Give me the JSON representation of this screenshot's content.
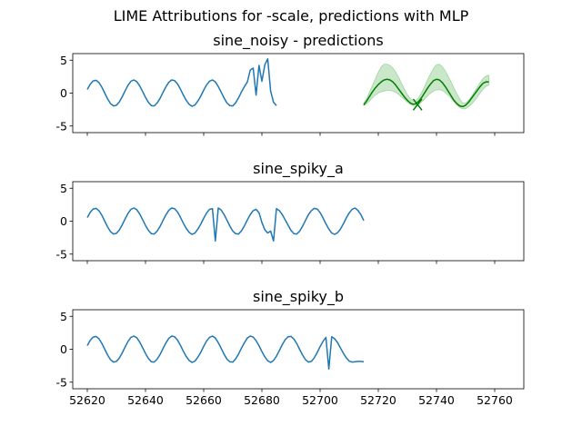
{
  "figure": {
    "suptitle": "LIME Attributions for -scale, predictions with MLP",
    "colors": {
      "series": "#1f77b4",
      "prediction": "#008000",
      "band": "#2ca02c"
    }
  },
  "chart_data": [
    {
      "type": "line",
      "title": "sine_noisy - predictions",
      "xlim": [
        52615,
        52770
      ],
      "ylim": [
        -6,
        6
      ],
      "xticks": [],
      "yticks": [
        -5,
        0,
        5
      ],
      "grid": false,
      "series": [
        {
          "role": "observed",
          "color": "#1f77b4",
          "x_start": 52620,
          "x_step": 1,
          "values": [
            0.55,
            1.35,
            1.85,
            1.95,
            1.6,
            0.9,
            0.0,
            -0.9,
            -1.6,
            -1.95,
            -1.85,
            -1.35,
            -0.55,
            0.35,
            1.2,
            1.8,
            2.0,
            1.75,
            1.1,
            0.25,
            -0.65,
            -1.4,
            -1.9,
            -1.95,
            -1.5,
            -0.8,
            0.1,
            0.95,
            1.65,
            2.0,
            1.9,
            1.4,
            0.6,
            -0.3,
            -1.1,
            -1.7,
            -2.0,
            -1.8,
            -1.2,
            -0.45,
            0.45,
            1.25,
            1.8,
            2.0,
            1.7,
            1.0,
            0.15,
            -0.75,
            -1.5,
            -1.9,
            -1.95,
            -1.45,
            -0.7,
            0.2,
            1.0,
            1.7,
            3.5,
            3.8,
            -0.3,
            4.2,
            1.8,
            4.3,
            5.2,
            0.3,
            -1.4,
            -1.9
          ]
        },
        {
          "role": "prediction",
          "color": "#008000",
          "x_start": 52715,
          "x_step": 1,
          "values": [
            -1.8,
            -1.2,
            -0.5,
            0.2,
            0.8,
            1.3,
            1.7,
            2.0,
            2.1,
            2.0,
            1.7,
            1.2,
            0.6,
            0.0,
            -0.6,
            -1.1,
            -1.5,
            -1.7,
            -1.6,
            -1.2,
            -0.6,
            0.1,
            0.8,
            1.4,
            1.9,
            2.1,
            2.0,
            1.6,
            1.0,
            0.3,
            -0.4,
            -1.1,
            -1.6,
            -1.95,
            -2.05,
            -1.85,
            -1.4,
            -0.8,
            -0.2,
            0.4,
            1.0,
            1.5,
            1.7,
            1.7
          ],
          "band_lower": [
            -1.9,
            -1.6,
            -1.2,
            -0.7,
            -0.3,
            0.0,
            0.2,
            0.3,
            0.4,
            0.4,
            0.3,
            0.1,
            -0.2,
            -0.6,
            -1.0,
            -1.4,
            -1.7,
            -1.9,
            -1.9,
            -1.7,
            -1.3,
            -0.9,
            -0.4,
            0.0,
            0.3,
            0.5,
            0.5,
            0.4,
            0.1,
            -0.3,
            -0.8,
            -1.3,
            -1.8,
            -2.2,
            -2.4,
            -2.4,
            -2.1,
            -1.7,
            -1.2,
            -0.6,
            0.0,
            0.6,
            1.0,
            1.2
          ],
          "band_upper": [
            -1.5,
            -0.8,
            0.2,
            1.2,
            2.2,
            3.2,
            4.0,
            4.4,
            4.4,
            4.2,
            3.8,
            3.2,
            2.4,
            1.5,
            0.6,
            -0.2,
            -0.8,
            -1.2,
            -1.1,
            -0.6,
            0.2,
            1.1,
            2.1,
            3.0,
            3.8,
            4.3,
            4.4,
            4.0,
            3.4,
            2.6,
            1.7,
            0.8,
            -0.1,
            -0.9,
            -1.5,
            -1.5,
            -1.1,
            -0.5,
            0.2,
            0.9,
            1.6,
            2.2,
            2.6,
            2.7
          ]
        },
        {
          "role": "marker",
          "color": "#008000",
          "points": [
            [
              52732,
              -2.6
            ],
            [
              52735,
              -0.9
            ],
            [
              52732,
              -0.9
            ],
            [
              52735,
              -2.6
            ]
          ]
        }
      ]
    },
    {
      "type": "line",
      "title": "sine_spiky_a",
      "xlim": [
        52615,
        52770
      ],
      "ylim": [
        -6,
        6
      ],
      "xticks": [],
      "yticks": [
        -5,
        0,
        5
      ],
      "grid": false,
      "series": [
        {
          "color": "#1f77b4",
          "x_start": 52620,
          "x_step": 1,
          "values": [
            0.55,
            1.35,
            1.85,
            1.95,
            1.6,
            0.9,
            0.0,
            -0.9,
            -1.6,
            -1.95,
            -1.85,
            -1.35,
            -0.55,
            0.35,
            1.2,
            1.8,
            2.0,
            1.75,
            1.1,
            0.25,
            -0.65,
            -1.4,
            -1.9,
            -1.95,
            -1.5,
            -0.8,
            0.1,
            0.95,
            1.65,
            2.0,
            1.9,
            1.4,
            0.6,
            -0.3,
            -1.1,
            -1.7,
            -2.0,
            -1.8,
            -1.2,
            -0.45,
            0.45,
            1.25,
            1.8,
            1.9,
            -3.0,
            2.0,
            1.7,
            1.0,
            0.15,
            -0.75,
            -1.5,
            -1.9,
            -1.95,
            -1.45,
            -0.7,
            0.2,
            1.0,
            1.6,
            1.8,
            1.3,
            -0.2,
            -1.3,
            -1.8,
            -1.5,
            -3.0,
            1.9,
            1.6,
            1.0,
            0.2,
            -0.6,
            -1.4,
            -1.9,
            -1.95,
            -1.5,
            -0.75,
            0.15,
            1.0,
            1.6,
            1.95,
            1.85,
            1.3,
            0.5,
            -0.4,
            -1.2,
            -1.8,
            -2.0,
            -1.75,
            -1.2,
            -0.4,
            0.5,
            1.25,
            1.8,
            2.0,
            1.65,
            1.0,
            0.1
          ]
        }
      ]
    },
    {
      "type": "line",
      "title": "sine_spiky_b",
      "xlim": [
        52615,
        52770
      ],
      "ylim": [
        -6,
        6
      ],
      "xticks": [
        52620,
        52640,
        52660,
        52680,
        52700,
        52720,
        52740,
        52760
      ],
      "yticks": [
        -5,
        0,
        5
      ],
      "grid": false,
      "series": [
        {
          "color": "#1f77b4",
          "x_start": 52620,
          "x_step": 1,
          "values": [
            0.55,
            1.35,
            1.85,
            1.95,
            1.6,
            0.9,
            0.0,
            -0.9,
            -1.6,
            -1.95,
            -1.85,
            -1.35,
            -0.55,
            0.35,
            1.2,
            1.8,
            2.0,
            1.75,
            1.1,
            0.25,
            -0.65,
            -1.4,
            -1.9,
            -1.95,
            -1.5,
            -0.8,
            0.1,
            0.95,
            1.65,
            2.0,
            1.9,
            1.4,
            0.6,
            -0.3,
            -1.1,
            -1.7,
            -2.0,
            -1.8,
            -1.2,
            -0.45,
            0.45,
            1.25,
            1.8,
            2.0,
            1.7,
            1.0,
            0.15,
            -0.75,
            -1.5,
            -1.9,
            -1.95,
            -1.45,
            -0.7,
            0.2,
            1.0,
            1.7,
            2.0,
            1.85,
            1.3,
            0.55,
            -0.35,
            -1.15,
            -1.75,
            -2.0,
            -1.7,
            -1.05,
            -0.2,
            0.7,
            1.45,
            1.9,
            1.95,
            1.55,
            0.85,
            -0.05,
            -0.9,
            -1.6,
            -1.95,
            -1.85,
            -1.3,
            -0.5,
            0.4,
            1.2,
            1.8,
            -3.0,
            1.9,
            1.6,
            1.0,
            0.2,
            -0.6,
            -1.3,
            -1.8,
            -1.95,
            -1.9,
            -1.85,
            -1.85,
            -1.9
          ]
        }
      ]
    }
  ]
}
